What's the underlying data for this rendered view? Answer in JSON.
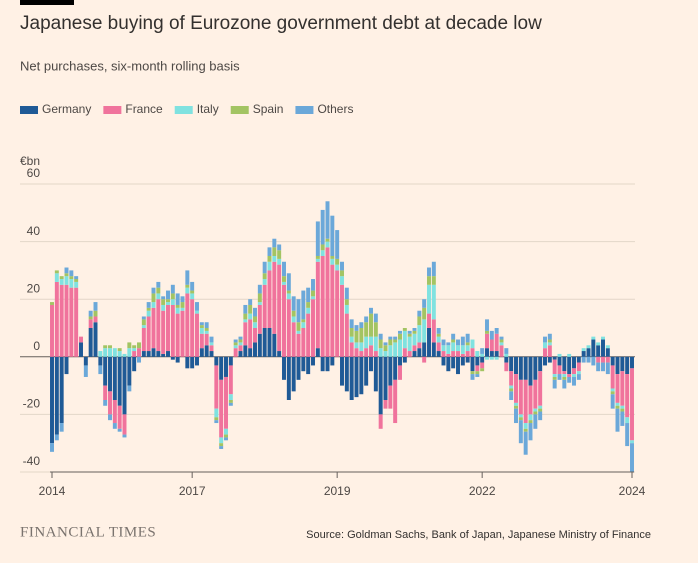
{
  "chart_data": {
    "type": "stacked_bar",
    "title": "Japanese buying of Eurozone government debt at decade low",
    "subtitle": "Net purchases, six-month rolling basis",
    "y_label": "€bn",
    "source": "Source: Goldman Sachs, Bank of Japan, Japanese Ministry of Finance",
    "brand": "FINANCIAL TIMES",
    "legend": "top-left",
    "grid": true,
    "ylim": [
      -40,
      60
    ],
    "yticks": [
      -40,
      -20,
      0,
      20,
      40,
      60
    ],
    "categories": [
      "2014",
      null,
      null,
      null,
      null,
      null,
      null,
      null,
      null,
      null,
      null,
      null,
      null,
      null,
      null,
      null,
      null,
      null,
      null,
      null,
      null,
      null,
      null,
      null,
      null,
      null,
      null,
      null,
      null,
      "2017",
      null,
      null,
      null,
      null,
      null,
      null,
      null,
      null,
      null,
      null,
      null,
      null,
      null,
      null,
      null,
      null,
      null,
      null,
      null,
      null,
      null,
      null,
      null,
      null,
      null,
      null,
      null,
      null,
      null,
      "2019",
      null,
      null,
      null,
      null,
      null,
      null,
      null,
      null,
      null,
      null,
      null,
      null,
      null,
      null,
      null,
      null,
      null,
      null,
      null,
      null,
      null,
      null,
      null,
      null,
      null,
      null,
      null,
      null,
      null,
      "2022",
      null,
      null,
      null,
      null,
      null,
      null,
      null,
      null,
      null,
      null,
      null,
      null,
      null,
      null,
      null,
      null,
      null,
      null,
      null,
      null,
      null,
      null,
      null,
      null,
      null,
      null,
      null,
      null,
      null,
      null,
      "2024"
    ],
    "series": [
      {
        "name": "Germany",
        "color": "#1f5a96",
        "values": [
          -30,
          -27,
          -23,
          -6,
          0,
          0,
          5,
          -3,
          10,
          12,
          -3,
          -10,
          -12,
          -15,
          -17,
          -20,
          -10,
          -5,
          0,
          2,
          2,
          3,
          2,
          1,
          2,
          -1,
          -2,
          0,
          -4,
          -4,
          -3,
          3,
          4,
          2,
          -3,
          -8,
          -7,
          -3,
          0,
          2,
          4,
          3,
          5,
          8,
          10,
          10,
          8,
          2,
          -8,
          -15,
          -12,
          -8,
          -5,
          -6,
          -3,
          3,
          -5,
          -5,
          -3,
          0,
          -10,
          -12,
          -15,
          -14,
          -13,
          -10,
          -5,
          -12,
          -20,
          -15,
          -10,
          -8,
          -3,
          -2,
          0,
          2,
          3,
          5,
          10,
          5,
          2,
          -3,
          -5,
          -4,
          -6,
          -3,
          -2,
          -5,
          -3,
          -2,
          3,
          2,
          2,
          0,
          -2,
          -5,
          -6,
          -8,
          -8,
          -10,
          -8,
          -5,
          -3,
          -2,
          -1,
          -3,
          -5,
          -6,
          -4,
          -2,
          2,
          3,
          6,
          4,
          6,
          3,
          -3,
          -6,
          -5,
          -6,
          -4
        ]
      },
      {
        "name": "France",
        "color": "#f0739c",
        "values": [
          18,
          26,
          25,
          25,
          24,
          24,
          2,
          0,
          3,
          2,
          0,
          -5,
          -8,
          -8,
          -8,
          -7,
          0,
          2,
          3,
          8,
          12,
          14,
          18,
          15,
          16,
          18,
          15,
          16,
          22,
          20,
          15,
          5,
          4,
          2,
          -15,
          -20,
          -18,
          -10,
          3,
          2,
          8,
          10,
          5,
          10,
          15,
          20,
          25,
          30,
          25,
          20,
          12,
          8,
          10,
          15,
          20,
          30,
          35,
          38,
          32,
          30,
          25,
          15,
          5,
          3,
          2,
          3,
          4,
          2,
          -5,
          -3,
          -8,
          -15,
          -5,
          3,
          2,
          2,
          2,
          -2,
          5,
          8,
          3,
          2,
          1,
          2,
          2,
          1,
          2,
          3,
          -2,
          -2,
          5,
          4,
          6,
          4,
          -3,
          -5,
          -10,
          -12,
          -15,
          -10,
          -10,
          -12,
          3,
          4,
          -5,
          -3,
          -1,
          -1,
          -2,
          -3,
          0,
          0,
          0,
          -2,
          -2,
          -2,
          -8,
          -10,
          -12,
          -15,
          -25
        ]
      },
      {
        "name": "Italy",
        "color": "#80e2e0",
        "values": [
          0,
          3,
          2,
          3,
          3,
          2,
          0,
          0,
          0,
          0,
          2,
          3,
          3,
          3,
          2,
          1,
          3,
          1,
          0,
          1,
          2,
          2,
          2,
          2,
          1,
          2,
          2,
          1,
          2,
          2,
          1,
          2,
          1,
          1,
          -3,
          -2,
          -2,
          -2,
          1,
          1,
          1,
          2,
          2,
          1,
          2,
          3,
          2,
          2,
          1,
          2,
          2,
          1,
          2,
          2,
          1,
          1,
          2,
          2,
          2,
          2,
          3,
          3,
          2,
          2,
          3,
          4,
          3,
          5,
          3,
          2,
          4,
          5,
          6,
          6,
          5,
          4,
          6,
          8,
          10,
          12,
          2,
          2,
          3,
          3,
          2,
          3,
          2,
          3,
          2,
          1,
          -1,
          -1,
          -1,
          1,
          1,
          -1,
          -1,
          -1,
          -2,
          -2,
          -1,
          -1,
          2,
          1,
          -1,
          1,
          -1,
          1,
          -1,
          -1,
          1,
          1,
          1,
          1,
          1,
          1,
          -1,
          -1,
          -1,
          -2,
          -1
        ]
      },
      {
        "name": "Spain",
        "color": "#a3c463",
        "values": [
          1,
          1,
          1,
          1,
          1,
          1,
          0,
          0,
          1,
          2,
          0,
          1,
          1,
          0,
          1,
          0,
          2,
          1,
          2,
          2,
          1,
          3,
          2,
          2,
          1,
          2,
          1,
          2,
          1,
          1,
          0,
          1,
          1,
          0,
          -1,
          -1,
          -1,
          -1,
          1,
          1,
          2,
          3,
          2,
          3,
          2,
          2,
          3,
          3,
          2,
          1,
          2,
          3,
          1,
          2,
          2,
          1,
          2,
          1,
          1,
          2,
          2,
          2,
          3,
          4,
          5,
          5,
          8,
          5,
          3,
          2,
          2,
          1,
          2,
          1,
          1,
          1,
          3,
          4,
          3,
          3,
          1,
          0,
          0,
          1,
          0,
          0,
          1,
          -1,
          -1,
          -1,
          1,
          0,
          0,
          1,
          0,
          -1,
          -1,
          -1,
          -1,
          -1,
          -1,
          -1,
          0,
          1,
          -1,
          0,
          -1,
          0,
          0,
          0,
          0,
          0,
          0,
          0,
          0,
          0,
          -1,
          -1,
          -1,
          0,
          0
        ]
      },
      {
        "name": "Others",
        "color": "#6ba8d9",
        "values": [
          -3,
          -2,
          -3,
          2,
          2,
          1,
          0,
          -4,
          2,
          3,
          -3,
          -2,
          -2,
          -2,
          -1,
          -1,
          -2,
          0,
          -2,
          1,
          2,
          2,
          2,
          1,
          3,
          3,
          4,
          2,
          5,
          3,
          3,
          1,
          2,
          2,
          -1,
          -1,
          -1,
          -1,
          1,
          1,
          3,
          2,
          3,
          3,
          4,
          3,
          3,
          2,
          5,
          6,
          5,
          8,
          10,
          5,
          4,
          12,
          12,
          13,
          14,
          10,
          3,
          4,
          3,
          2,
          2,
          2,
          2,
          3,
          2,
          1,
          1,
          1,
          1,
          0,
          1,
          1,
          2,
          3,
          3,
          5,
          2,
          2,
          1,
          2,
          2,
          3,
          3,
          -2,
          -1,
          2,
          4,
          3,
          2,
          1,
          2,
          -3,
          -5,
          -8,
          -8,
          -6,
          -5,
          -3,
          2,
          2,
          -3,
          -2,
          -3,
          -2,
          -3,
          -2,
          -2,
          -2,
          -3,
          -3,
          -3,
          -4,
          -5,
          -8,
          -5,
          -8,
          -10
        ]
      }
    ]
  }
}
